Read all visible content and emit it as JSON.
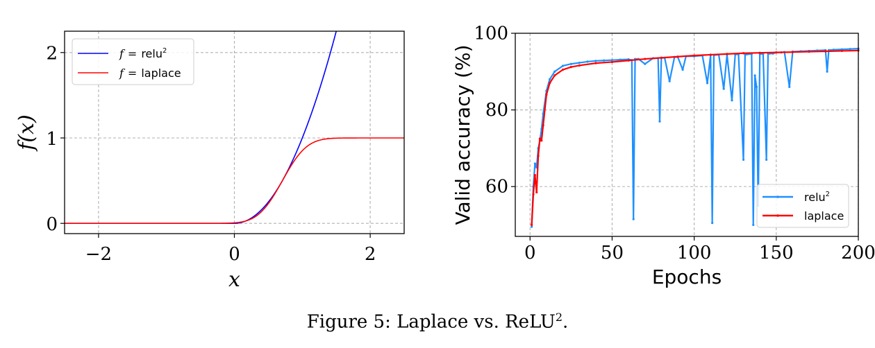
{
  "caption": {
    "prefix": "Figure 5: Laplace vs. ReLU",
    "sup": "2",
    "suffix": "."
  },
  "chart_data": [
    {
      "type": "line",
      "title": "",
      "xlabel": "x",
      "ylabel": "f(x)",
      "xlim": [
        -2.5,
        2.5
      ],
      "ylim": [
        -0.12,
        2.25
      ],
      "xticks": [
        -2,
        0,
        2
      ],
      "xtick_labels": [
        "−2",
        "0",
        "2"
      ],
      "yticks": [
        0,
        1,
        2
      ],
      "ytick_labels": [
        "0",
        "1",
        "2"
      ],
      "grid": true,
      "legend_position": "top-left",
      "series": [
        {
          "name": "f = relu²",
          "legend_f": "f",
          "legend_eq": "=",
          "legend_fn": "relu",
          "legend_sup": "2",
          "color": "#0000ff",
          "function": "relu2"
        },
        {
          "name": "f = laplace",
          "legend_f": "f",
          "legend_eq": "=",
          "legend_fn": "laplace",
          "color": "#ff0000",
          "function": "laplace"
        }
      ]
    },
    {
      "type": "line",
      "title": "",
      "xlabel": "Epochs",
      "ylabel": "Valid accuracy (%)",
      "xlim": [
        -9,
        200
      ],
      "ylim": [
        47,
        100
      ],
      "xticks": [
        0,
        50,
        100,
        150,
        200
      ],
      "xtick_labels": [
        "0",
        "50",
        "100",
        "150",
        "200"
      ],
      "yticks": [
        60,
        80,
        100
      ],
      "ytick_labels": [
        "60",
        "80",
        "100"
      ],
      "grid": true,
      "legend_position": "bottom-right",
      "series": [
        {
          "name": "relu²",
          "legend_fn": "relu",
          "legend_sup": "2",
          "color": "#1e90ff",
          "x": [
            1,
            2,
            3,
            4,
            5,
            6,
            7,
            8,
            10,
            12,
            15,
            20,
            25,
            30,
            35,
            40,
            45,
            50,
            55,
            60,
            62,
            63,
            64,
            66,
            70,
            75,
            78,
            79,
            80,
            82,
            85,
            88,
            90,
            93,
            95,
            100,
            105,
            108,
            110,
            111,
            112,
            115,
            118,
            120,
            123,
            125,
            127,
            130,
            131,
            132,
            135,
            136,
            137,
            138,
            139,
            140,
            142,
            144,
            145,
            146,
            148,
            150,
            153,
            155,
            158,
            160,
            165,
            170,
            175,
            180,
            181,
            182,
            185,
            190,
            195,
            200
          ],
          "y": [
            49.5,
            60,
            66,
            65,
            70,
            72,
            75,
            79,
            85,
            88,
            90,
            91.5,
            92,
            92.3,
            92.6,
            92.8,
            92.9,
            93,
            93.1,
            93.2,
            93,
            51.5,
            93.3,
            93.3,
            92,
            93.5,
            93.5,
            77,
            93.6,
            93.6,
            87.5,
            93.8,
            93.8,
            90.5,
            94,
            94,
            94.2,
            87,
            94.3,
            50.5,
            94.3,
            94.4,
            85.5,
            94.4,
            82.5,
            94.5,
            94.5,
            67,
            94.5,
            94.5,
            94.6,
            50,
            89,
            86,
            55,
            94.6,
            94.6,
            67,
            94.7,
            94.7,
            94.7,
            95,
            95,
            95.1,
            86,
            95.2,
            95.3,
            95.4,
            95.5,
            95.6,
            90,
            95.6,
            95.7,
            95.8,
            95.9,
            96
          ]
        },
        {
          "name": "laplace",
          "legend_fn": "laplace",
          "color": "#ff0000",
          "x": [
            1,
            2,
            3,
            4,
            5,
            6,
            7,
            8,
            10,
            12,
            15,
            20,
            25,
            30,
            40,
            50,
            60,
            70,
            80,
            90,
            100,
            110,
            120,
            130,
            140,
            150,
            160,
            170,
            180,
            190,
            200
          ],
          "y": [
            50,
            58,
            63,
            58.5,
            68,
            72.5,
            72,
            76,
            84,
            87,
            89,
            90.5,
            91.2,
            91.6,
            92.2,
            92.5,
            92.9,
            93.3,
            93.6,
            93.9,
            94.2,
            94.4,
            94.6,
            94.8,
            94.9,
            95,
            95.1,
            95.2,
            95.3,
            95.4,
            95.5
          ]
        }
      ]
    }
  ]
}
